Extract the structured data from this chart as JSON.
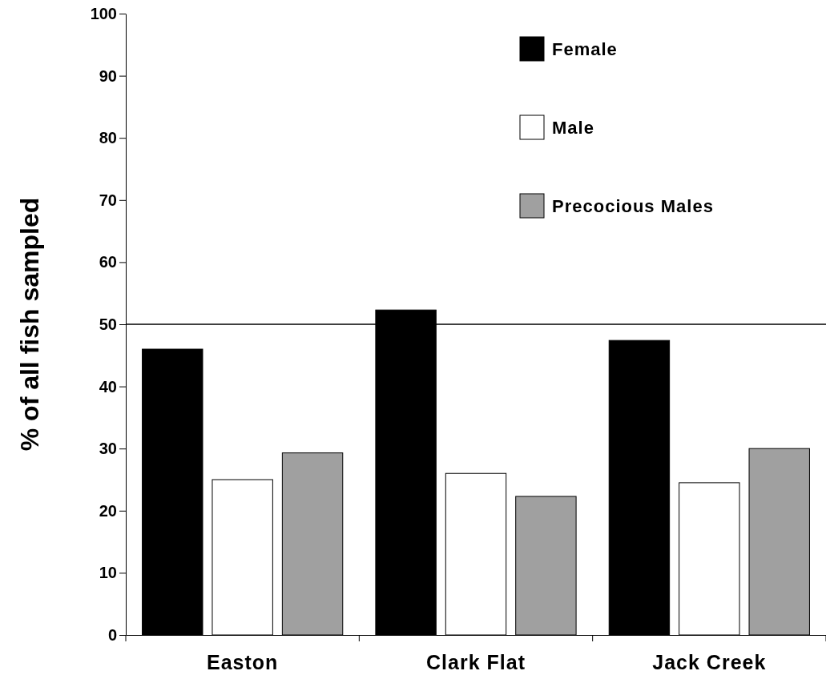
{
  "chart_data": {
    "type": "bar",
    "ylabel": "% of all fish sampled",
    "categories": [
      "Easton",
      "Clark Flat",
      "Jack Creek"
    ],
    "series": [
      {
        "name": "Female",
        "color": "#000000",
        "values": [
          46,
          52.3,
          47.4
        ]
      },
      {
        "name": "Male",
        "color": "#ffffff",
        "values": [
          25,
          26,
          24.5
        ]
      },
      {
        "name": "Precocious Males",
        "color": "#a0a0a0",
        "values": [
          29.3,
          22.3,
          30
        ]
      }
    ],
    "ylim": [
      0,
      100
    ],
    "yticks": [
      0,
      10,
      20,
      30,
      40,
      50,
      60,
      70,
      80,
      90,
      100
    ],
    "grid": false,
    "legend": "top right",
    "ref_lines": [
      {
        "axis": "y",
        "value": 50,
        "color": "#000000"
      }
    ]
  }
}
